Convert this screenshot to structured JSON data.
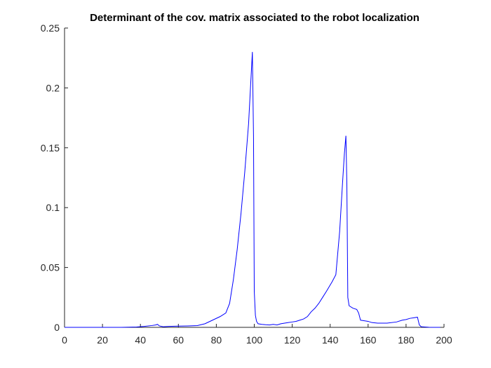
{
  "chart_data": {
    "type": "line",
    "title": "Determinant of the cov. matrix associated to the robot localization",
    "xlabel": "",
    "ylabel": "",
    "xlim": [
      0,
      200
    ],
    "ylim": [
      0,
      0.25
    ],
    "xticks": [
      0,
      20,
      40,
      60,
      80,
      100,
      120,
      140,
      160,
      180,
      200
    ],
    "yticks": [
      0,
      0.05,
      0.1,
      0.15,
      0.2,
      0.25
    ],
    "xtick_labels": [
      "0",
      "20",
      "40",
      "60",
      "80",
      "100",
      "120",
      "140",
      "160",
      "180",
      "200"
    ],
    "ytick_labels": [
      "0",
      "0.05",
      "0.1",
      "0.15",
      "0.2",
      "0.25"
    ],
    "grid": false,
    "legend": "none",
    "series": [
      {
        "color": "#0000ff",
        "x": [
          0,
          10,
          20,
          30,
          38,
          42,
          46,
          48,
          49,
          50,
          52,
          55,
          60,
          65,
          70,
          74,
          78,
          82,
          85,
          87,
          89,
          91,
          93,
          95,
          97,
          98,
          99,
          99.6,
          100,
          100.6,
          101.2,
          102,
          104,
          106,
          108,
          110,
          112,
          114,
          116,
          118,
          120,
          122,
          124,
          126,
          128,
          130,
          132,
          134,
          136,
          138,
          141,
          143,
          145,
          146.5,
          147.5,
          148.3,
          148.8,
          149.3,
          150,
          152,
          154,
          155,
          156,
          158,
          160,
          162,
          165,
          170,
          175,
          178,
          180,
          182,
          184,
          186,
          187,
          188,
          190,
          192,
          195,
          198
        ],
        "y": [
          0,
          0,
          0,
          0,
          0.0003,
          0.0008,
          0.0015,
          0.002,
          0.0025,
          0.0012,
          0.0005,
          0.0008,
          0.001,
          0.0012,
          0.0015,
          0.003,
          0.006,
          0.009,
          0.012,
          0.02,
          0.04,
          0.065,
          0.095,
          0.13,
          0.17,
          0.2,
          0.23,
          0.16,
          0.03,
          0.01,
          0.005,
          0.003,
          0.0025,
          0.0022,
          0.002,
          0.0025,
          0.002,
          0.003,
          0.0035,
          0.004,
          0.0045,
          0.005,
          0.006,
          0.007,
          0.009,
          0.013,
          0.016,
          0.02,
          0.025,
          0.03,
          0.038,
          0.044,
          0.08,
          0.12,
          0.145,
          0.16,
          0.12,
          0.025,
          0.018,
          0.016,
          0.015,
          0.012,
          0.006,
          0.0055,
          0.005,
          0.004,
          0.0035,
          0.0035,
          0.0045,
          0.006,
          0.0065,
          0.0075,
          0.008,
          0.0085,
          0.002,
          0.0005,
          0.0003,
          0.0001,
          0,
          0
        ]
      }
    ]
  }
}
